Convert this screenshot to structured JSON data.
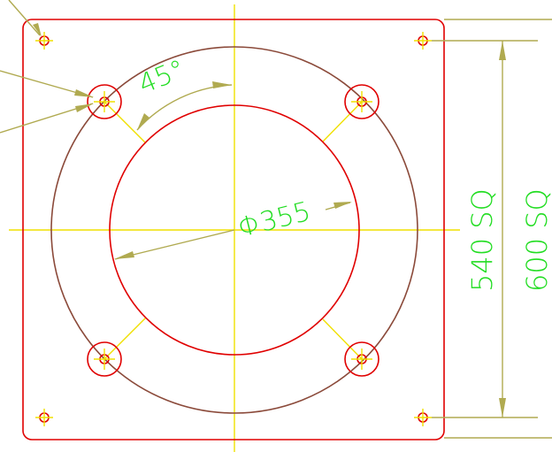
{
  "drawing": {
    "angle_label": "45°",
    "diameter_label": "Φ355",
    "inner_square_label": "540 SQ",
    "outer_square_label": "600 SQ"
  }
}
